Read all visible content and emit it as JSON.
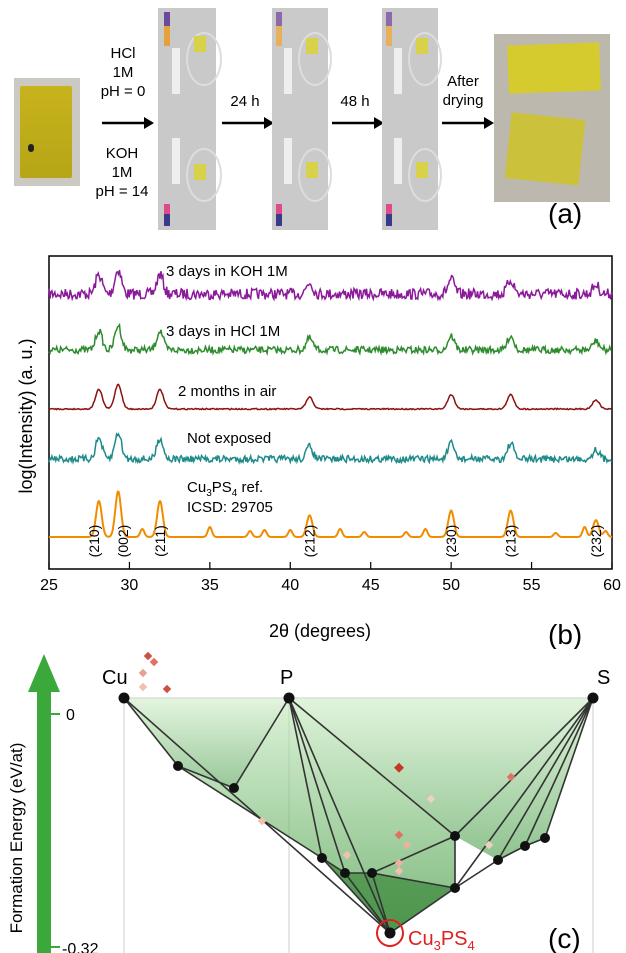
{
  "panel_a": {
    "letter": "(a)",
    "upper_condition": [
      "HCl",
      "1M",
      "pH = 0"
    ],
    "lower_condition": [
      "KOH",
      "1M",
      "pH = 14"
    ],
    "time_1": "24 h",
    "time_2": "48 h",
    "after_label": [
      "After",
      "drying"
    ]
  },
  "panel_b": {
    "letter": "(b)",
    "ylabel": "log(Intensity) (a. u.)",
    "xlabel": "2θ (degrees)",
    "xticks": [
      25,
      30,
      35,
      40,
      45,
      50,
      55,
      60
    ],
    "xlim": [
      25,
      60
    ],
    "traces": [
      {
        "label": "3 days in KOH 1M",
        "color": "#8b1a9a"
      },
      {
        "label": "3 days in HCl 1M",
        "color": "#2e8b2e"
      },
      {
        "label": "2 months in air",
        "color": "#8b1111"
      },
      {
        "label": "Not exposed",
        "color": "#1f8a8a"
      },
      {
        "label_main": "Cu3PS4 ref.",
        "label_main_formula": {
          "base1": "Cu",
          "sub1": "3",
          "base2": "PS",
          "sub2": "4",
          "suffix": " ref."
        },
        "label_second": "ICSD: 29705",
        "color": "#f08c00"
      }
    ],
    "miller": [
      "(210)",
      "(002)",
      "(211)",
      "(212)",
      "(230)",
      "(213)",
      "(232)"
    ]
  },
  "chart_data": {
    "type": "line",
    "xlabel": "2θ (degrees)",
    "ylabel": "log(Intensity) (a. u.)",
    "xlim": [
      25,
      60
    ],
    "peaks_2theta": [
      28.1,
      29.3,
      31.9,
      41.2,
      50.0,
      53.7,
      59.0
    ],
    "miller_indices": [
      "(210)",
      "(002)",
      "(211)",
      "(212)",
      "(230)",
      "(213)",
      "(232)"
    ],
    "series": [
      {
        "name": "3 days in KOH 1M"
      },
      {
        "name": "3 days in HCl 1M"
      },
      {
        "name": "2 months in air"
      },
      {
        "name": "Not exposed"
      },
      {
        "name": "Cu3PS4 ref. ICSD: 29705"
      }
    ]
  },
  "panel_c": {
    "letter": "(c)",
    "axis_label": "Formation Energy (eV/at)",
    "tick_top": "0",
    "tick_bottom": "-0.32",
    "vertices": [
      "Cu",
      "P",
      "S"
    ],
    "compound": {
      "base1": "Cu",
      "sub1": "3",
      "base2": "PS",
      "sub2": "4"
    },
    "arrow_color": "#3aa83a",
    "highlight_color": "#e02020"
  }
}
